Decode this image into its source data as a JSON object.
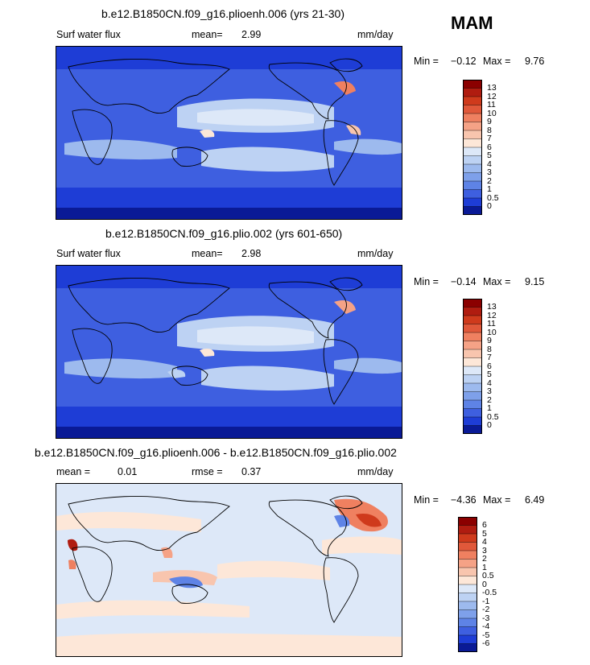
{
  "season": "MAM",
  "colorbar_top": {
    "labels": [
      "13",
      "12",
      "11",
      "10",
      "9",
      "8",
      "7",
      "6",
      "5",
      "4",
      "3",
      "2",
      "1",
      "0.5",
      "0"
    ],
    "colors": [
      "#8b0000",
      "#b01c10",
      "#cf3a1c",
      "#e0583a",
      "#ef8060",
      "#f5a286",
      "#f8c5ae",
      "#fde7d8",
      "#dde8f8",
      "#bdd2f3",
      "#9dbaee",
      "#7ea0ea",
      "#5e83e6",
      "#3e5fe0",
      "#1e3dd6",
      "#0a1a96"
    ]
  },
  "colorbar_diff": {
    "labels": [
      "6",
      "5",
      "4",
      "3",
      "2",
      "1",
      "0.5",
      "0",
      "-0.5",
      "-1",
      "-2",
      "-3",
      "-4",
      "-5",
      "-6"
    ],
    "colors": [
      "#8b0000",
      "#b01c10",
      "#cf3a1c",
      "#e0583a",
      "#ef8060",
      "#f5a286",
      "#f8c5ae",
      "#fde7d8",
      "#dde8f8",
      "#bdd2f3",
      "#9dbaee",
      "#7ea0ea",
      "#5e83e6",
      "#3e5fe0",
      "#1e3dd6",
      "#0a1a96"
    ]
  },
  "panels": [
    {
      "title": "b.e12.B1850CN.f09_g16.plioenh.006 (yrs 21-30)",
      "left_label": "Surf water flux",
      "stat1_label": "mean=",
      "stat1_value": "2.99",
      "units": "mm/day",
      "min_label": "Min =",
      "min_value": "−0.12",
      "max_label": "Max =",
      "max_value": "9.76",
      "kind": "abs"
    },
    {
      "title": "b.e12.B1850CN.f09_g16.plio.002 (yrs 601-650)",
      "left_label": "Surf water flux",
      "stat1_label": "mean=",
      "stat1_value": "2.98",
      "units": "mm/day",
      "min_label": "Min =",
      "min_value": "−0.14",
      "max_label": "Max =",
      "max_value": "9.15",
      "kind": "abs"
    },
    {
      "title": "b.e12.B1850CN.f09_g16.plioenh.006 - b.e12.B1850CN.f09_g16.plio.002",
      "stat0_label": "mean =",
      "stat0_value": "0.01",
      "stat1_label": "rmse =",
      "stat1_value": "0.37",
      "units": "mm/day",
      "min_label": "Min =",
      "min_value": "−4.36",
      "max_label": "Max =",
      "max_value": "6.49",
      "kind": "diff"
    }
  ]
}
